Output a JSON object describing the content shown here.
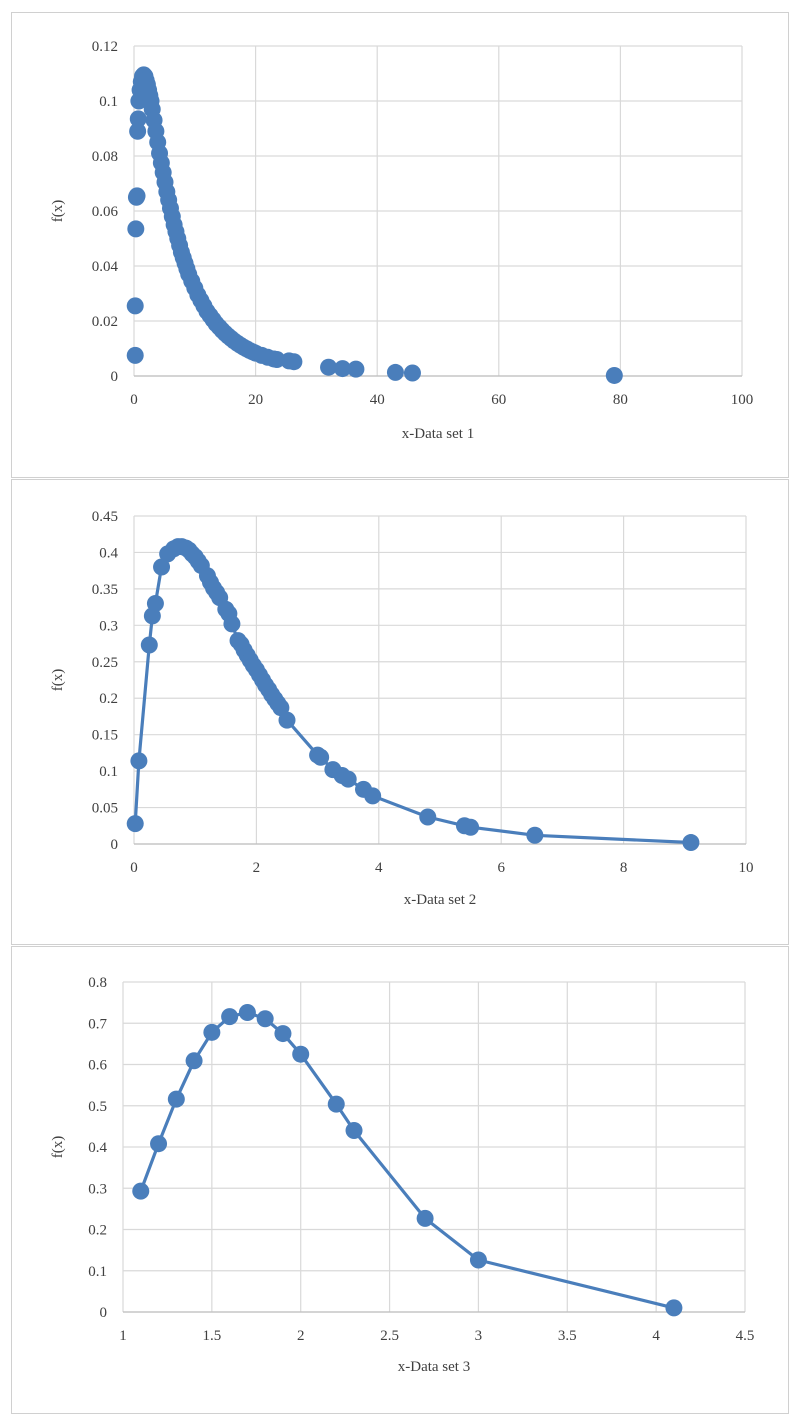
{
  "colors": {
    "series": "#4a7ebb",
    "grid": "#d9d9d9",
    "text": "#404040"
  },
  "chart_data": [
    {
      "type": "scatter",
      "xlabel": "x-Data set 1",
      "ylabel": "f(x)",
      "xlim": [
        0,
        100
      ],
      "ylim": [
        0,
        0.12
      ],
      "xticks": [
        "0",
        "20",
        "40",
        "60",
        "80",
        "100"
      ],
      "yticks": [
        "0",
        "0.02",
        "0.04",
        "0.06",
        "0.08",
        "0.1",
        "0.12"
      ],
      "grid": true,
      "connected": false,
      "series": [
        {
          "x": [
            0.2,
            0.2,
            0.3,
            0.4,
            0.5,
            0.6,
            0.7,
            0.8,
            1.0,
            1.2,
            1.4,
            1.6,
            1.8,
            2.0,
            2.2,
            2.4,
            2.6,
            2.8,
            3.0,
            3.3,
            3.6,
            3.9,
            4.2,
            4.5,
            4.8,
            5.1,
            5.4,
            5.7,
            6.0,
            6.3,
            6.6,
            6.9,
            7.2,
            7.5,
            7.8,
            8.1,
            8.4,
            8.7,
            9.0,
            9.5,
            10.0,
            10.5,
            11.0,
            11.5,
            12.0,
            12.5,
            13.0,
            13.5,
            14.0,
            14.5,
            15.0,
            15.5,
            16.0,
            16.5,
            17.0,
            17.5,
            18.0,
            18.5,
            19.0,
            19.5,
            20.0,
            21.0,
            22.0,
            23.0,
            23.5,
            25.5,
            26.3,
            32.0,
            34.3,
            36.5,
            43.0,
            45.8,
            79.0
          ],
          "y": [
            0.0075,
            0.0255,
            0.0535,
            0.065,
            0.0655,
            0.089,
            0.0935,
            0.1,
            0.104,
            0.107,
            0.109,
            0.1095,
            0.109,
            0.1075,
            0.106,
            0.104,
            0.102,
            0.1,
            0.097,
            0.093,
            0.089,
            0.085,
            0.081,
            0.0775,
            0.074,
            0.0705,
            0.067,
            0.064,
            0.061,
            0.058,
            0.055,
            0.0525,
            0.05,
            0.0475,
            0.045,
            0.043,
            0.041,
            0.039,
            0.037,
            0.0345,
            0.032,
            0.0295,
            0.0275,
            0.0255,
            0.0235,
            0.022,
            0.0205,
            0.019,
            0.0178,
            0.0166,
            0.0155,
            0.0145,
            0.0136,
            0.0127,
            0.0119,
            0.0112,
            0.0105,
            0.0099,
            0.0093,
            0.0088,
            0.0083,
            0.0075,
            0.0068,
            0.0062,
            0.006,
            0.0055,
            0.0052,
            0.0032,
            0.0027,
            0.0025,
            0.0013,
            0.0011,
            0.0002
          ]
        }
      ]
    },
    {
      "type": "line",
      "xlabel": "x-Data set 2",
      "ylabel": "f(x)",
      "xlim": [
        0,
        10
      ],
      "ylim": [
        0,
        0.45
      ],
      "xticks": [
        "0",
        "2",
        "4",
        "6",
        "8",
        "10"
      ],
      "yticks": [
        "0",
        "0.05",
        "0.1",
        "0.15",
        "0.2",
        "0.25",
        "0.3",
        "0.35",
        "0.4",
        "0.45"
      ],
      "grid": true,
      "connected": true,
      "series": [
        {
          "x": [
            0.02,
            0.08,
            0.25,
            0.3,
            0.35,
            0.45,
            0.55,
            0.65,
            0.72,
            0.78,
            0.85,
            0.9,
            0.95,
            1.0,
            1.05,
            1.1,
            1.2,
            1.25,
            1.3,
            1.35,
            1.4,
            1.5,
            1.55,
            1.6,
            1.7,
            1.75,
            1.8,
            1.85,
            1.9,
            1.95,
            2.0,
            2.05,
            2.1,
            2.15,
            2.2,
            2.25,
            2.3,
            2.35,
            2.4,
            2.5,
            3.0,
            3.05,
            3.25,
            3.4,
            3.5,
            3.75,
            3.9,
            4.8,
            5.4,
            5.5,
            6.55,
            9.1
          ],
          "y": [
            0.028,
            0.114,
            0.273,
            0.313,
            0.33,
            0.38,
            0.398,
            0.405,
            0.408,
            0.408,
            0.406,
            0.403,
            0.398,
            0.394,
            0.388,
            0.382,
            0.368,
            0.359,
            0.351,
            0.345,
            0.338,
            0.322,
            0.316,
            0.302,
            0.279,
            0.274,
            0.266,
            0.259,
            0.252,
            0.245,
            0.239,
            0.232,
            0.225,
            0.218,
            0.212,
            0.205,
            0.199,
            0.193,
            0.187,
            0.17,
            0.122,
            0.119,
            0.102,
            0.094,
            0.089,
            0.075,
            0.066,
            0.037,
            0.025,
            0.023,
            0.012,
            0.002
          ]
        }
      ]
    },
    {
      "type": "line",
      "xlabel": "x-Data set 3",
      "ylabel": "f(x)",
      "xlim": [
        1,
        4.5
      ],
      "ylim": [
        0,
        0.8
      ],
      "xticks": [
        "1",
        "1.5",
        "2",
        "2.5",
        "3",
        "3.5",
        "4",
        "4.5"
      ],
      "yticks": [
        "0",
        "0.1",
        "0.2",
        "0.3",
        "0.4",
        "0.5",
        "0.6",
        "0.7",
        "0.8"
      ],
      "grid": true,
      "connected": true,
      "series": [
        {
          "x": [
            1.1,
            1.2,
            1.3,
            1.4,
            1.5,
            1.6,
            1.7,
            1.8,
            1.9,
            2.0,
            2.2,
            2.3,
            2.7,
            3.0,
            4.1
          ],
          "y": [
            0.293,
            0.408,
            0.516,
            0.609,
            0.678,
            0.716,
            0.726,
            0.711,
            0.675,
            0.625,
            0.504,
            0.44,
            0.227,
            0.126,
            0.01
          ]
        }
      ]
    }
  ]
}
